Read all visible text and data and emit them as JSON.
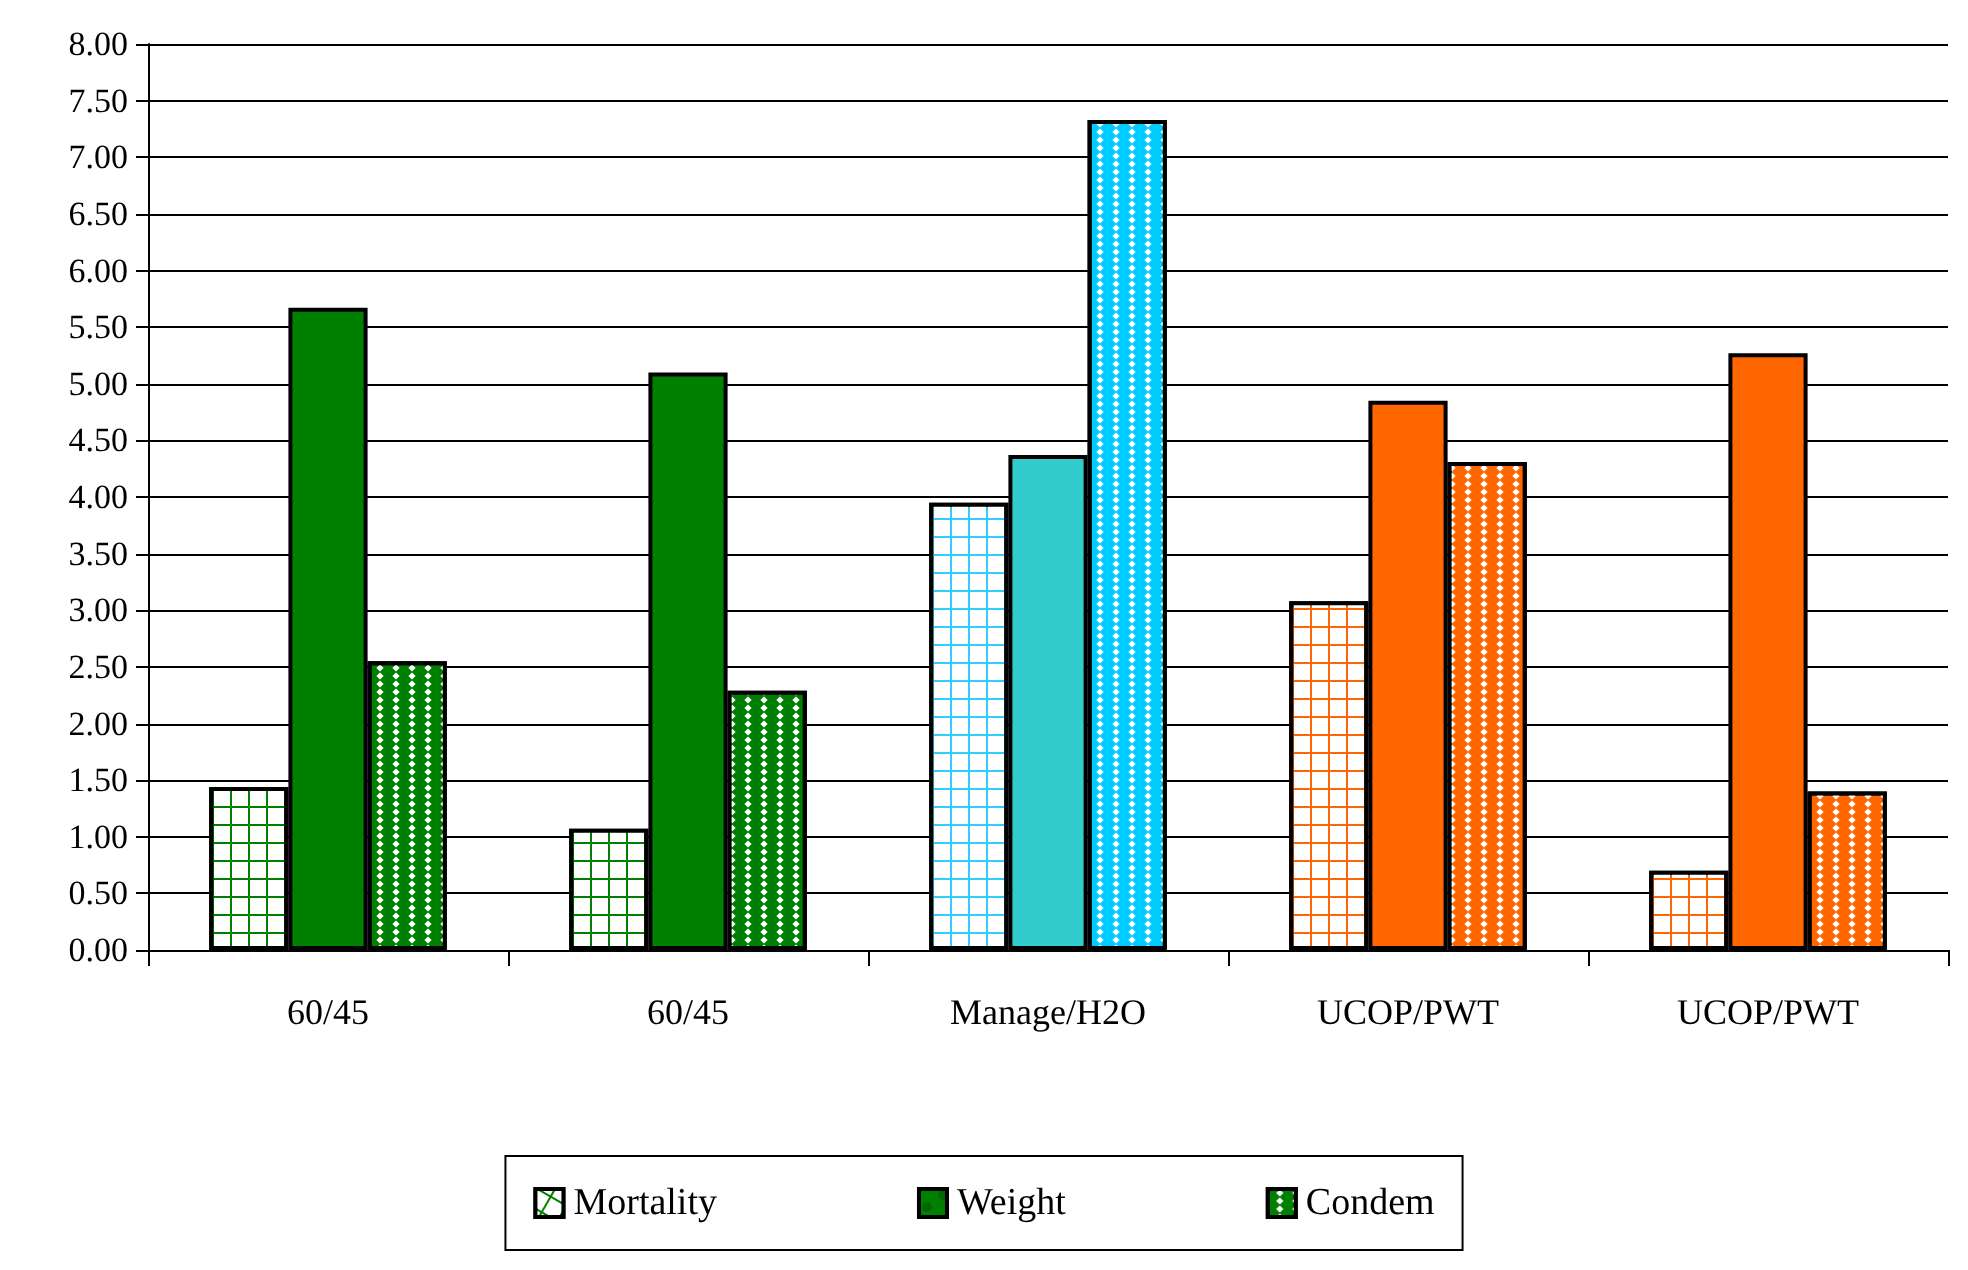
{
  "chart_data": {
    "type": "bar",
    "categories": [
      "60/45",
      "60/45",
      "Manage/H2O",
      "UCOP/PWT",
      "UCOP/PWT"
    ],
    "series": [
      {
        "name": "Mortality",
        "color": "#008000",
        "colors": [
          "#008000",
          "#008000",
          "#33ccff",
          "#ff6600",
          "#ff6600"
        ],
        "values": [
          1.44,
          1.07,
          3.95,
          3.08,
          0.7
        ]
      },
      {
        "name": "Weight",
        "color": "#008000",
        "colors": [
          "#008000",
          "#008000",
          "#33cccc",
          "#ff6600",
          "#ff6600"
        ],
        "values": [
          5.67,
          5.1,
          4.37,
          4.85,
          5.27
        ]
      },
      {
        "name": "Condem",
        "color": "#008000",
        "colors": [
          "#008000",
          "#008000",
          "#00ccff",
          "#ff6600",
          "#ff6600"
        ],
        "values": [
          2.55,
          2.29,
          7.33,
          4.31,
          1.4
        ]
      }
    ],
    "ylim": [
      0,
      8
    ],
    "yticks": [
      {
        "value": 0,
        "label": "0.00"
      },
      {
        "value": 0.5,
        "label": "0.50"
      },
      {
        "value": 1,
        "label": "1.00"
      },
      {
        "value": 1.5,
        "label": "1.50"
      },
      {
        "value": 2,
        "label": "2.00"
      },
      {
        "value": 2.5,
        "label": "2.50"
      },
      {
        "value": 3,
        "label": "3.00"
      },
      {
        "value": 3.5,
        "label": "3.50"
      },
      {
        "value": 4,
        "label": "4.00"
      },
      {
        "value": 4.5,
        "label": "4.50"
      },
      {
        "value": 5,
        "label": "5.00"
      },
      {
        "value": 5.5,
        "label": "5.50"
      },
      {
        "value": 6,
        "label": "6.00"
      },
      {
        "value": 6.5,
        "label": "6.50"
      },
      {
        "value": 7,
        "label": "7.00"
      },
      {
        "value": 7.5,
        "label": "7.50"
      },
      {
        "value": 8,
        "label": "8.00"
      }
    ],
    "grid": "y",
    "legend": "bottom"
  }
}
